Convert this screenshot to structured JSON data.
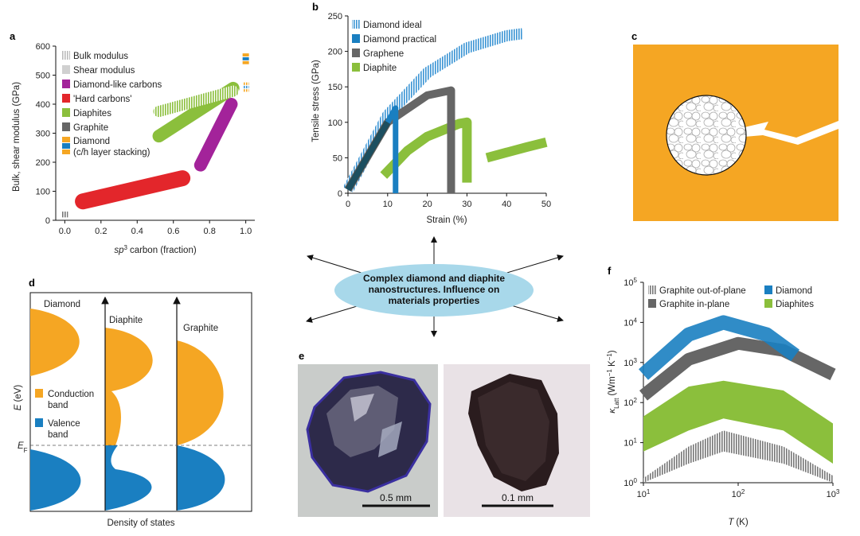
{
  "colors": {
    "diamond": "#1a7fc1",
    "diamond_light": "#5aaee2",
    "graphene": "#666666",
    "diaphite": "#8bbf3c",
    "dlc": "#a3239a",
    "hard_carbon": "#e3262b",
    "orange": "#f5a623",
    "bubble": "#a8d8ea"
  },
  "panel_a": {
    "letter": "a",
    "legend": [
      "Bulk modulus",
      "Shear modulus",
      "Diamond-like carbons",
      "'Hard carbons'",
      "Diaphites",
      "Graphite",
      "Diamond",
      "(c/h layer stacking)"
    ],
    "chart_data": {
      "type": "scatter",
      "ylabel": "Bulk, shear modulus (GPa)",
      "xlabel": "carbon (fraction)",
      "xlabel_prefix": "sp",
      "xlabel_sup": "3",
      "xlim": [
        -0.05,
        1.05
      ],
      "ylim": [
        0,
        600
      ],
      "xticks": [
        "0.0",
        "0.2",
        "0.4",
        "0.6",
        "0.8",
        "1.0"
      ],
      "yticks": [
        "0",
        "100",
        "200",
        "300",
        "400",
        "500",
        "600"
      ],
      "series": [
        {
          "name": "Graphite",
          "x": [
            0.0,
            0.0
          ],
          "y": [
            10,
            30
          ]
        },
        {
          "name": "'Hard carbons'",
          "x": [
            0.1,
            0.65
          ],
          "y": [
            65,
            145
          ]
        },
        {
          "name": "Diamond-like carbons",
          "x": [
            0.75,
            0.92
          ],
          "y": [
            190,
            400
          ]
        },
        {
          "name": "Diaphites (shear)",
          "x": [
            0.52,
            0.93
          ],
          "y": [
            290,
            455
          ]
        },
        {
          "name": "Diaphites (bulk)",
          "x": [
            0.52,
            0.93
          ],
          "y": [
            375,
            445
          ]
        },
        {
          "name": "Diamond bulk",
          "x": [
            1.0,
            1.0
          ],
          "y": [
            535,
            575
          ]
        },
        {
          "name": "Diamond shear",
          "x": [
            1.0,
            1.0
          ],
          "y": [
            440,
            475
          ]
        }
      ]
    }
  },
  "panel_b": {
    "letter": "b",
    "legend": [
      "Diamond ideal",
      "Diamond practical",
      "Graphene",
      "Diaphite"
    ],
    "chart_data": {
      "type": "line",
      "xlabel": "Strain (%)",
      "ylabel": "Tensile stress (GPa)",
      "xlim": [
        0,
        50
      ],
      "ylim": [
        0,
        250
      ],
      "xticks": [
        "0",
        "10",
        "20",
        "30",
        "40",
        "50"
      ],
      "yticks": [
        "0",
        "50",
        "100",
        "150",
        "200",
        "250"
      ],
      "series": [
        {
          "name": "Diamond ideal",
          "x": [
            0,
            10,
            20,
            30,
            40,
            44
          ],
          "y": [
            5,
            110,
            170,
            205,
            222,
            225
          ]
        },
        {
          "name": "Diamond practical",
          "x": [
            0,
            10,
            12
          ],
          "y": [
            5,
            100,
            120
          ]
        },
        {
          "name": "Graphene",
          "x": [
            0,
            10,
            20,
            26
          ],
          "y": [
            5,
            100,
            138,
            145
          ]
        },
        {
          "name": "Diaphite",
          "x": [
            9,
            15,
            20,
            28,
            30,
            35,
            45,
            50
          ],
          "y": [
            25,
            60,
            80,
            98,
            100,
            50,
            65,
            72
          ]
        }
      ]
    }
  },
  "panel_c": {
    "letter": "c"
  },
  "panel_d": {
    "letter": "d",
    "labels": {
      "diamond": "Diamond",
      "diaphite": "Diaphite",
      "graphite": "Graphite"
    },
    "ylabel": "E (eV)",
    "ylabel_italic": "E",
    "ylabel_unit": "(eV)",
    "fermi_main": "E",
    "fermi_sub": "F",
    "xlabel": "Density of states",
    "legend": [
      "Conduction",
      "band",
      "Valence",
      "band"
    ]
  },
  "center": {
    "line1": "Complex diamond and diaphite",
    "line2": "nanostructures. Influence on",
    "line3": "materials properties"
  },
  "panel_e": {
    "letter": "e",
    "scale_left": "0.5 mm",
    "scale_right": "0.1 mm"
  },
  "panel_f": {
    "letter": "f",
    "legend": [
      "Graphite out-of-plane",
      "Diamond",
      "Graphite in-plane",
      "Diaphites"
    ],
    "chart_data": {
      "type": "line",
      "xlabel": "(K)",
      "xlabel_italic": "T",
      "ylabel": "κLatt (Wm−1 K−1)",
      "ylabel_kappa": "κ",
      "ylabel_sub": "Latt",
      "ylabel_unit": "(Wm",
      "ylabel_sup1": "−1",
      "ylabel_mid": " K",
      "ylabel_sup2": "−1",
      "ylabel_end": ")",
      "xscale": "log",
      "yscale": "log",
      "xlim": [
        10,
        1000
      ],
      "ylim": [
        1,
        100000
      ],
      "xtick_base": "10",
      "xtick_exps": [
        "1",
        "2",
        "3"
      ],
      "ytick_base": "10",
      "ytick_exps": [
        "0",
        "1",
        "2",
        "3",
        "4",
        "5"
      ],
      "series": [
        {
          "name": "Diamond",
          "x": [
            10,
            30,
            70,
            200,
            400
          ],
          "y": [
            500,
            5000,
            10000,
            5000,
            1500
          ]
        },
        {
          "name": "Graphite in-plane",
          "x": [
            10,
            30,
            100,
            300,
            1000
          ],
          "y": [
            150,
            1200,
            3000,
            2000,
            500
          ]
        },
        {
          "name": "Diaphites",
          "x": [
            10,
            30,
            70,
            300,
            1000
          ],
          "y": [
            45,
            250,
            350,
            200,
            30
          ]
        },
        {
          "name": "Graphite out-of-plane",
          "x": [
            10,
            30,
            70,
            300,
            1000
          ],
          "y": [
            1.3,
            8,
            20,
            8,
            1.5
          ]
        }
      ]
    }
  }
}
